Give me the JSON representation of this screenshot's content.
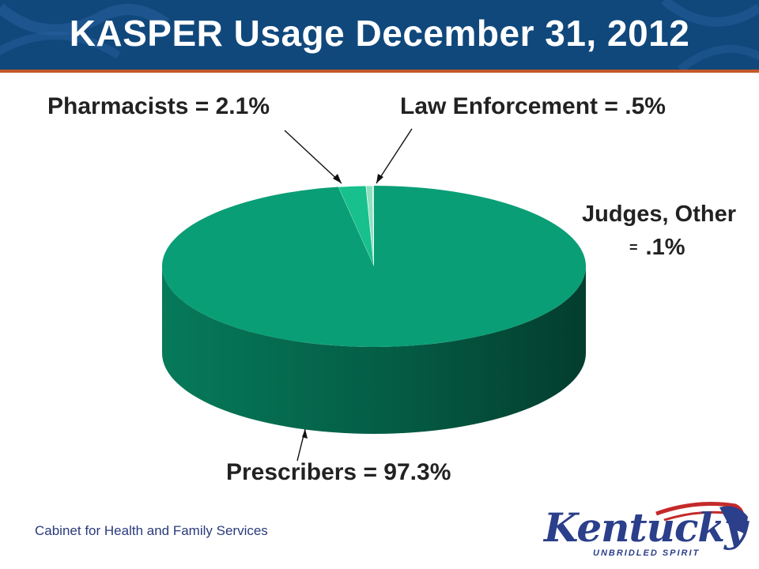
{
  "header": {
    "title": "KASPER Usage December 31, 2012"
  },
  "footer": {
    "text": "Cabinet for Health and Family Services"
  },
  "logo": {
    "word": "Kentucky",
    "tagline": "UNBRIDLED SPIRIT"
  },
  "colors": {
    "header_bg": "#10487c",
    "header_stripe": "#c4572a",
    "pie_top": "#0a9e76",
    "pie_side": "#067a5a",
    "pharmacists": "#17c08c",
    "law_enforcement": "#8fe0c0"
  },
  "labels": {
    "pharmacists": "Pharmacists = 2.1%",
    "law_enforcement": "Law Enforcement = .5%",
    "judges_line1": "Judges, Other",
    "judges_eq": "=",
    "judges_line2": ".1%",
    "prescribers": "Prescribers = 97.3%"
  },
  "chart_data": {
    "type": "pie",
    "style": "3d",
    "title": "KASPER Usage December 31, 2012",
    "categories": [
      "Prescribers",
      "Pharmacists",
      "Law Enforcement",
      "Judges, Other"
    ],
    "values": [
      97.3,
      2.1,
      0.5,
      0.1
    ],
    "unit": "%"
  }
}
